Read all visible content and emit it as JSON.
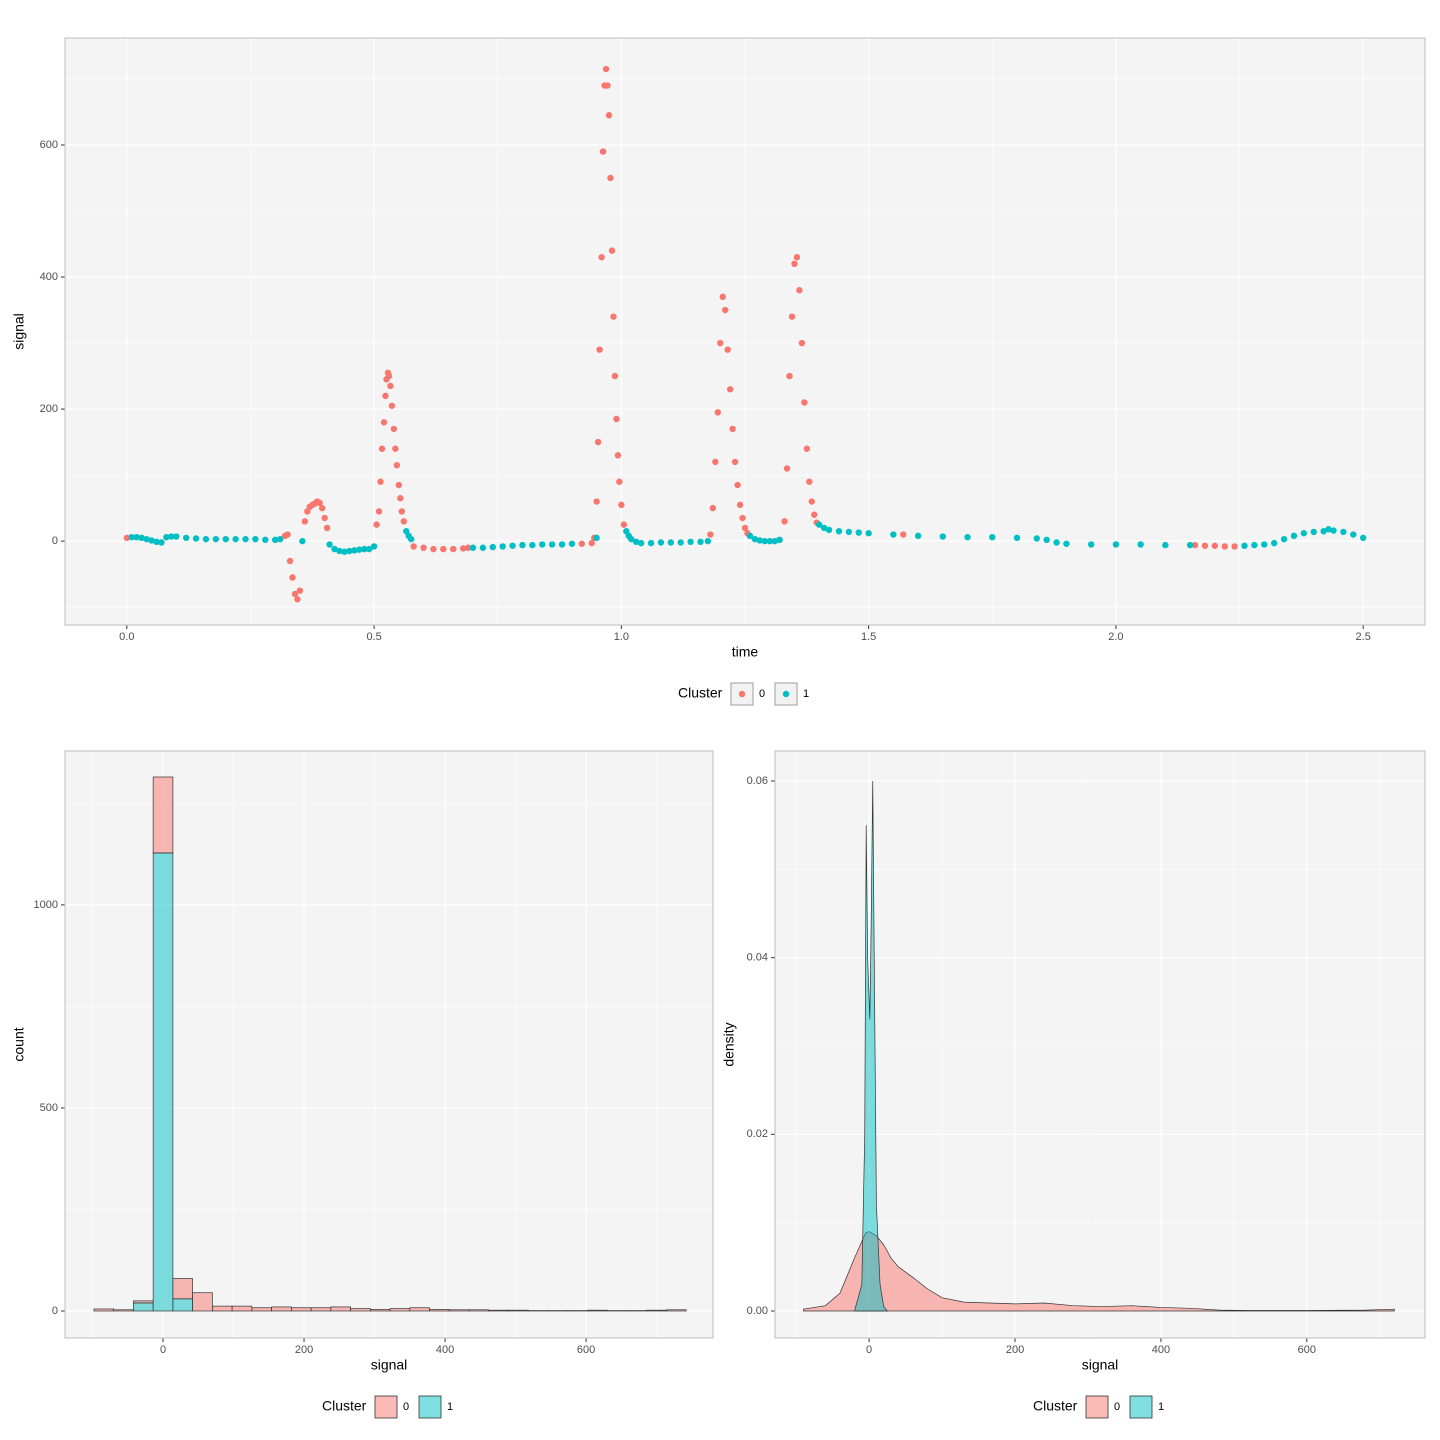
{
  "chart_data": [
    {
      "type": "scatter",
      "x_label": "time",
      "y_label": "signal",
      "legend_title": "Cluster",
      "xlim": [
        -0.125,
        2.625
      ],
      "ylim": [
        -127,
        762
      ],
      "xticks": [
        {
          "value": 0,
          "label": "0.0"
        },
        0.5,
        {
          "value": 1,
          "label": "1.0"
        },
        1.5,
        {
          "value": 2,
          "label": "2.0"
        },
        2.5
      ],
      "yticks": [
        0,
        200,
        400,
        600
      ],
      "grid": true,
      "series": [
        {
          "name": "0",
          "color": "#F8766D",
          "x": [
            0.0,
            0.32,
            0.325,
            0.33,
            0.335,
            0.34,
            0.345,
            0.35,
            0.36,
            0.365,
            0.37,
            0.375,
            0.38,
            0.385,
            0.39,
            0.395,
            0.4,
            0.405,
            0.505,
            0.51,
            0.513,
            0.516,
            0.52,
            0.523,
            0.525,
            0.528,
            0.53,
            0.533,
            0.536,
            0.54,
            0.543,
            0.546,
            0.55,
            0.553,
            0.556,
            0.56,
            0.58,
            0.6,
            0.62,
            0.64,
            0.66,
            0.68,
            0.69,
            0.92,
            0.94,
            0.945,
            0.95,
            0.953,
            0.956,
            0.96,
            0.963,
            0.966,
            0.969,
            0.972,
            0.975,
            0.978,
            0.981,
            0.984,
            0.987,
            0.99,
            0.993,
            0.996,
            1.0,
            1.005,
            1.18,
            1.185,
            1.19,
            1.195,
            1.2,
            1.205,
            1.21,
            1.215,
            1.22,
            1.225,
            1.23,
            1.235,
            1.24,
            1.245,
            1.25,
            1.255,
            1.33,
            1.335,
            1.34,
            1.345,
            1.35,
            1.355,
            1.36,
            1.365,
            1.37,
            1.375,
            1.38,
            1.385,
            1.39,
            1.395,
            1.57,
            2.16,
            2.18,
            2.2,
            2.22,
            2.24
          ],
          "values": [
            5,
            8,
            10,
            -30,
            -55,
            -80,
            -88,
            -75,
            30,
            45,
            52,
            55,
            57,
            60,
            58,
            50,
            35,
            20,
            25,
            45,
            90,
            140,
            180,
            220,
            245,
            255,
            250,
            235,
            205,
            170,
            140,
            115,
            85,
            65,
            45,
            30,
            -8,
            -10,
            -12,
            -12,
            -12,
            -11,
            -10,
            -4,
            -3,
            5,
            60,
            150,
            290,
            430,
            590,
            690,
            715,
            690,
            645,
            550,
            440,
            340,
            250,
            185,
            130,
            90,
            55,
            25,
            10,
            50,
            120,
            195,
            300,
            370,
            350,
            290,
            230,
            170,
            120,
            85,
            55,
            35,
            20,
            12,
            30,
            110,
            250,
            340,
            420,
            430,
            380,
            300,
            210,
            140,
            90,
            60,
            40,
            28,
            10,
            -6,
            -7,
            -7,
            -8,
            -8
          ]
        },
        {
          "name": "1",
          "color": "#00BFC4",
          "x": [
            0.01,
            0.02,
            0.03,
            0.04,
            0.05,
            0.06,
            0.07,
            0.08,
            0.09,
            0.1,
            0.12,
            0.14,
            0.16,
            0.18,
            0.2,
            0.22,
            0.24,
            0.26,
            0.28,
            0.3,
            0.31,
            0.355,
            0.41,
            0.42,
            0.43,
            0.44,
            0.45,
            0.46,
            0.47,
            0.48,
            0.49,
            0.5,
            0.565,
            0.57,
            0.575,
            0.7,
            0.72,
            0.74,
            0.76,
            0.78,
            0.8,
            0.82,
            0.84,
            0.86,
            0.88,
            0.9,
            0.95,
            1.01,
            1.015,
            1.02,
            1.03,
            1.04,
            1.06,
            1.08,
            1.1,
            1.12,
            1.14,
            1.16,
            1.175,
            1.26,
            1.27,
            1.28,
            1.29,
            1.3,
            1.31,
            1.32,
            1.4,
            1.41,
            1.42,
            1.44,
            1.46,
            1.48,
            1.5,
            1.55,
            1.6,
            1.65,
            1.7,
            1.75,
            1.8,
            1.84,
            1.86,
            1.88,
            1.9,
            1.95,
            2.0,
            2.05,
            2.1,
            2.15,
            2.26,
            2.28,
            2.3,
            2.32,
            2.34,
            2.36,
            2.38,
            2.4,
            2.42,
            2.43,
            2.44,
            2.46,
            2.48,
            2.5
          ],
          "values": [
            6,
            6,
            5,
            3,
            1,
            -1,
            -2,
            6,
            7,
            7,
            5,
            4,
            3,
            3,
            3,
            3,
            3,
            3,
            2,
            2,
            3,
            0,
            -5,
            -12,
            -15,
            -16,
            -15,
            -14,
            -13,
            -12,
            -12,
            -8,
            15,
            8,
            3,
            -10,
            -10,
            -9,
            -8,
            -7,
            -6,
            -6,
            -5,
            -5,
            -5,
            -4,
            5,
            15,
            8,
            3,
            -1,
            -3,
            -3,
            -2,
            -2,
            -2,
            -1,
            -1,
            0,
            8,
            3,
            1,
            0,
            0,
            0,
            2,
            25,
            20,
            17,
            15,
            14,
            13,
            12,
            10,
            8,
            7,
            6,
            6,
            5,
            4,
            2,
            -2,
            -4,
            -5,
            -5,
            -5,
            -6,
            -6,
            -7,
            -6,
            -5,
            -3,
            3,
            8,
            12,
            14,
            15,
            18,
            16,
            14,
            10,
            5
          ]
        }
      ]
    },
    {
      "type": "histogram",
      "x_label": "signal",
      "y_label": "count",
      "legend_title": "Cluster",
      "xlim": [
        -139,
        780
      ],
      "ylim": [
        -66.5,
        1379
      ],
      "xticks": [
        0,
        200,
        400,
        600
      ],
      "yticks": [
        0,
        500,
        1000
      ],
      "grid": true,
      "bins": [
        -98,
        -70,
        -42,
        -14,
        14,
        42,
        70,
        98,
        126,
        154,
        182,
        210,
        238,
        266,
        294,
        322,
        350,
        378,
        406,
        434,
        462,
        490,
        518,
        546,
        574,
        602,
        630,
        658,
        686,
        714,
        742
      ],
      "series": [
        {
          "name": "0",
          "color": "#F8766D",
          "values": [
            5,
            3,
            5,
            187,
            50,
            45,
            12,
            12,
            8,
            10,
            8,
            8,
            10,
            6,
            4,
            6,
            8,
            4,
            3,
            3,
            2,
            2,
            1,
            1,
            1,
            2,
            1,
            1,
            2,
            3
          ]
        },
        {
          "name": "1",
          "color": "#00BFC4",
          "values": [
            0,
            0,
            20,
            1128,
            30,
            0,
            0,
            0,
            0,
            0,
            0,
            0,
            0,
            0,
            0,
            0,
            0,
            0,
            0,
            0,
            0,
            0,
            0,
            0,
            0,
            0,
            0,
            0,
            0,
            0
          ]
        }
      ]
    },
    {
      "type": "area",
      "x_label": "signal",
      "y_label": "density",
      "legend_title": "Cluster",
      "xlim": [
        -129,
        762
      ],
      "ylim": [
        -0.00306,
        0.0634
      ],
      "xticks": [
        0,
        200,
        400,
        600
      ],
      "yticks": [
        {
          "value": 0,
          "label": "0.00"
        },
        {
          "value": 0.02,
          "label": "0.02"
        },
        {
          "value": 0.04,
          "label": "0.04"
        },
        {
          "value": 0.06,
          "label": "0.06"
        }
      ],
      "grid": true,
      "series": [
        {
          "name": "0",
          "color": "#F8766D",
          "x": [
            -90,
            -60,
            -40,
            -20,
            -5,
            0,
            10,
            20,
            30,
            40,
            60,
            80,
            100,
            130,
            200,
            240,
            280,
            320,
            360,
            400,
            440,
            480,
            520,
            600,
            680,
            720
          ],
          "values": [
            0.0002,
            0.0006,
            0.002,
            0.006,
            0.0088,
            0.009,
            0.0085,
            0.0075,
            0.006,
            0.005,
            0.0038,
            0.0025,
            0.0015,
            0.001,
            0.0008,
            0.0009,
            0.0006,
            0.0005,
            0.0006,
            0.0004,
            0.0003,
            0.0001,
            5e-05,
            5e-05,
            0.0001,
            0.0002
          ]
        },
        {
          "name": "1",
          "color": "#00BFC4",
          "x": [
            -20,
            -10,
            -6,
            -4,
            -2,
            1,
            3,
            5,
            7,
            10,
            15,
            20,
            25
          ],
          "values": [
            0,
            0.003,
            0.02,
            0.055,
            0.04,
            0.033,
            0.045,
            0.06,
            0.04,
            0.012,
            0.003,
            0.0005,
            0
          ]
        }
      ]
    }
  ]
}
